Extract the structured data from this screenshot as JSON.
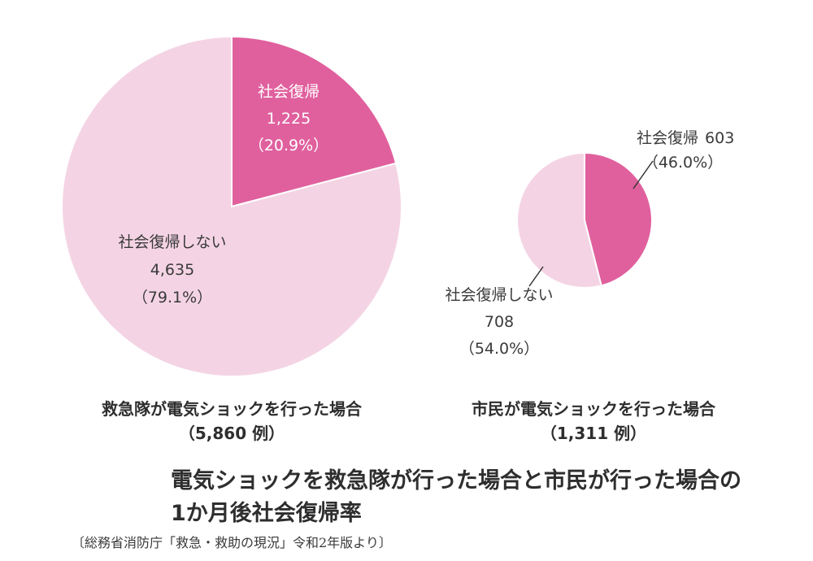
{
  "colors": {
    "social_return": "#e0609e",
    "no_return": "#f4d4e4",
    "separator": "#ffffff",
    "leader_line": "#333333"
  },
  "chart_data": [
    {
      "type": "pie",
      "caption": "救急隊が電気ショックを行った場合",
      "caption_sub": "（5,860 例）",
      "total": 5860,
      "slices": [
        {
          "label": "社会復帰",
          "value": 1225,
          "value_text": "1,225",
          "percent": 20.9,
          "percent_text": "（20.9%）",
          "color_key": "social_return"
        },
        {
          "label": "社会復帰しない",
          "value": 4635,
          "value_text": "4,635",
          "percent": 79.1,
          "percent_text": "（79.1%）",
          "color_key": "no_return"
        }
      ]
    },
    {
      "type": "pie",
      "caption": "市民が電気ショックを行った場合",
      "caption_sub": "（1,311 例）",
      "total": 1311,
      "slices": [
        {
          "label": "社会復帰",
          "value": 603,
          "value_text": "603",
          "percent": 46.0,
          "percent_text": "（46.0%）",
          "color_key": "social_return"
        },
        {
          "label": "社会復帰しない",
          "value": 708,
          "value_text": "708",
          "percent": 54.0,
          "percent_text": "（54.0%）",
          "color_key": "no_return"
        }
      ]
    }
  ],
  "title": {
    "line1": "電気ショックを救急隊が行った場合と市民が行った場合の",
    "line2": "1か月後社会復帰率"
  },
  "source": "〔総務省消防庁「救急・救助の現況」令和2年版より〕"
}
